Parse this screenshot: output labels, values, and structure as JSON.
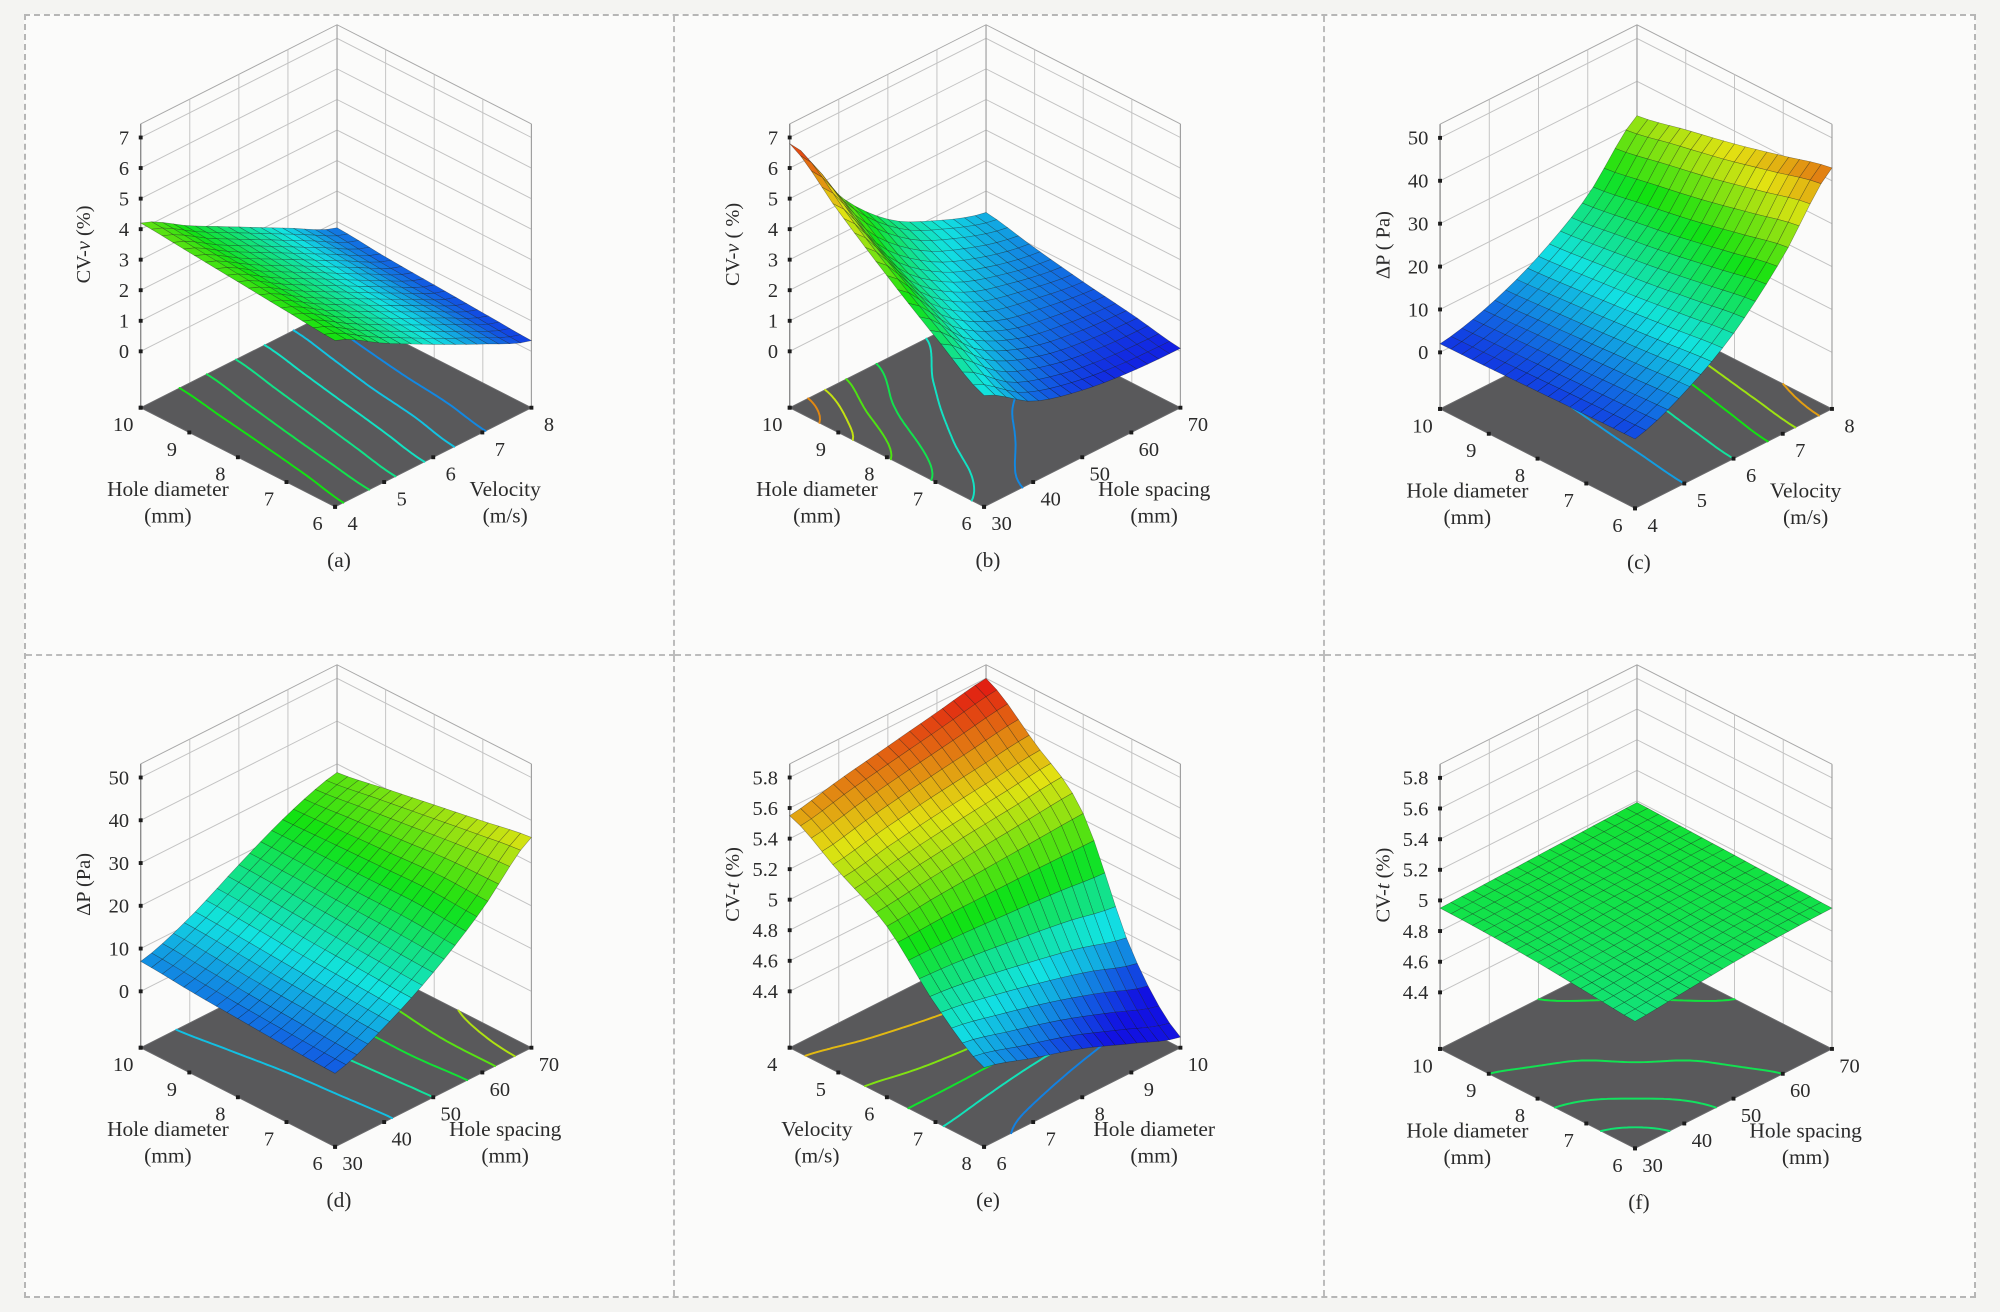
{
  "figure": {
    "background": "#f4f4f2",
    "panel_background": "#fbfbfa",
    "divider_color": "#bcbcbc",
    "floor_color": "#59595b",
    "grid_color": "#c3c3c3",
    "text_color": "#2b2b2b"
  },
  "chart_data": [
    {
      "panel": "a",
      "type": "surface3d",
      "caption": "(a)",
      "z_axis": {
        "label_parts": [
          [
            "CV-",
            false
          ],
          [
            "v",
            true
          ],
          [
            " (%)",
            false
          ]
        ],
        "ticks": [
          "0",
          "1",
          "2",
          "3",
          "4",
          "5",
          "6",
          "7"
        ],
        "range": [
          0,
          7
        ]
      },
      "left_axis": {
        "title_lines": [
          "Hole diameter",
          "(mm)"
        ],
        "tick_labels": [
          "6",
          "7",
          "8",
          "9",
          "10"
        ],
        "values": [
          6,
          7,
          8,
          9,
          10
        ]
      },
      "right_axis": {
        "title_lines": [
          "Velocity",
          "(m/s)"
        ],
        "tick_labels": [
          "4",
          "5",
          "6",
          "7",
          "8"
        ],
        "values": [
          4,
          5,
          6,
          7,
          8
        ]
      },
      "color_range": [
        0,
        7
      ],
      "contour_levels": [
        1,
        1.5,
        2,
        2.5,
        3,
        3.5
      ],
      "z_grid": {
        "rows_axis": "left",
        "cols_axis": "right",
        "values": [
          [
            3.6,
            2.7,
            1.85,
            1.05,
            0.35
          ],
          [
            3.75,
            2.85,
            2.0,
            1.2,
            0.45
          ],
          [
            3.9,
            3.0,
            2.15,
            1.3,
            0.55
          ],
          [
            4.05,
            3.15,
            2.3,
            1.45,
            0.65
          ],
          [
            4.2,
            3.3,
            2.45,
            1.6,
            0.8
          ]
        ]
      }
    },
    {
      "panel": "b",
      "type": "surface3d",
      "caption": "(b)",
      "z_axis": {
        "label_parts": [
          [
            "CV-",
            false
          ],
          [
            "v",
            true
          ],
          [
            " ( %)",
            false
          ]
        ],
        "ticks": [
          "0",
          "1",
          "2",
          "3",
          "4",
          "5",
          "6",
          "7"
        ],
        "range": [
          0,
          7
        ]
      },
      "left_axis": {
        "title_lines": [
          "Hole diameter",
          "(mm)"
        ],
        "tick_labels": [
          "6",
          "7",
          "8",
          "9",
          "10"
        ],
        "values": [
          6,
          7,
          8,
          9,
          10
        ]
      },
      "right_axis": {
        "title_lines": [
          "Hole spacing",
          "(mm)"
        ],
        "tick_labels": [
          "30",
          "40",
          "50",
          "60",
          "70"
        ],
        "values": [
          30,
          40,
          50,
          60,
          70
        ]
      },
      "color_range": [
        0,
        7
      ],
      "contour_levels": [
        1,
        2,
        3,
        4,
        5,
        6
      ],
      "z_grid": {
        "rows_axis": "left",
        "cols_axis": "right",
        "values": [
          [
            1.8,
            0.8,
            0.35,
            0.15,
            0.1
          ],
          [
            2.9,
            1.5,
            0.8,
            0.5,
            0.4
          ],
          [
            4.1,
            2.3,
            1.3,
            0.9,
            0.65
          ],
          [
            5.4,
            3.2,
            1.95,
            1.3,
            0.95
          ],
          [
            6.8,
            4.3,
            2.7,
            1.85,
            1.3
          ]
        ]
      }
    },
    {
      "panel": "c",
      "type": "surface3d",
      "caption": "(c)",
      "z_axis": {
        "label_parts": [
          [
            "ΔP ( Pa)",
            false
          ]
        ],
        "ticks": [
          "0",
          "10",
          "20",
          "30",
          "40",
          "50"
        ],
        "range": [
          0,
          50
        ]
      },
      "left_axis": {
        "title_lines": [
          "Hole diameter",
          "(mm)"
        ],
        "tick_labels": [
          "6",
          "7",
          "8",
          "9",
          "10"
        ],
        "values": [
          6,
          7,
          8,
          9,
          10
        ]
      },
      "right_axis": {
        "title_lines": [
          "Velocity",
          "(m/s)"
        ],
        "tick_labels": [
          "4",
          "5",
          "6",
          "7",
          "8"
        ],
        "values": [
          4,
          5,
          6,
          7,
          8
        ]
      },
      "color_range": [
        0,
        48
      ],
      "contour_levels": [
        8,
        16,
        24,
        32,
        40
      ],
      "z_grid": {
        "rows_axis": "left",
        "cols_axis": "right",
        "values": [
          [
            3,
            8,
            16,
            28,
            43
          ],
          [
            2.8,
            7.2,
            14.5,
            25.5,
            40
          ],
          [
            2.5,
            6.5,
            13,
            23,
            37
          ],
          [
            2.2,
            5.8,
            11.8,
            21,
            34.5
          ],
          [
            2,
            5.2,
            10.8,
            19.2,
            32
          ]
        ]
      }
    },
    {
      "panel": "d",
      "type": "surface3d",
      "caption": "(d)",
      "z_axis": {
        "label_parts": [
          [
            "ΔP (Pa)",
            false
          ]
        ],
        "ticks": [
          "0",
          "10",
          "20",
          "30",
          "40",
          "50"
        ],
        "range": [
          0,
          50
        ]
      },
      "left_axis": {
        "title_lines": [
          "Hole diameter",
          "(mm)"
        ],
        "tick_labels": [
          "6",
          "7",
          "8",
          "9",
          "10"
        ],
        "values": [
          6,
          7,
          8,
          9,
          10
        ]
      },
      "right_axis": {
        "title_lines": [
          "Hole spacing",
          "(mm)"
        ],
        "tick_labels": [
          "30",
          "40",
          "50",
          "60",
          "70"
        ],
        "values": [
          30,
          40,
          50,
          60,
          70
        ]
      },
      "color_range": [
        0,
        48
      ],
      "contour_levels": [
        10,
        16,
        22,
        28,
        33
      ],
      "z_grid": {
        "rows_axis": "left",
        "cols_axis": "right",
        "values": [
          [
            4,
            9,
            16,
            25,
            36
          ],
          [
            4.5,
            9.5,
            16.5,
            25.5,
            34
          ],
          [
            5.2,
            10,
            17,
            25,
            32
          ],
          [
            6,
            10.8,
            17.5,
            24.5,
            30
          ],
          [
            7,
            11.5,
            18,
            24,
            28
          ]
        ]
      }
    },
    {
      "panel": "e",
      "type": "surface3d",
      "caption": "(e)",
      "z_axis": {
        "label_parts": [
          [
            "CV-",
            false
          ],
          [
            "t",
            true
          ],
          [
            " (%)",
            false
          ]
        ],
        "ticks": [
          "4.4",
          "4.6",
          "4.8",
          "5",
          "5.2",
          "5.4",
          "5.6",
          "5.8"
        ],
        "range": [
          4.4,
          5.8
        ]
      },
      "left_axis": {
        "title_lines": [
          "Velocity",
          "(m/s)"
        ],
        "tick_labels": [
          "8",
          "7",
          "6",
          "5",
          "4"
        ],
        "values": [
          8,
          7,
          6,
          5,
          4
        ]
      },
      "right_axis": {
        "title_lines": [
          "Hole diameter",
          "(mm)"
        ],
        "tick_labels": [
          "6",
          "7",
          "8",
          "9",
          "10"
        ],
        "values": [
          6,
          7,
          8,
          9,
          10
        ]
      },
      "color_range": [
        4.3,
        5.8
      ],
      "contour_levels": [
        4.5,
        4.75,
        5,
        5.25,
        5.5
      ],
      "z_grid": {
        "rows_axis": "left",
        "cols_axis": "right",
        "values": [
          [
            4.55,
            4.45,
            4.35,
            4.22,
            4.1
          ],
          [
            4.8,
            4.75,
            4.68,
            4.6,
            4.5
          ],
          [
            5.15,
            5.18,
            5.2,
            5.22,
            5.24
          ],
          [
            5.35,
            5.41,
            5.46,
            5.5,
            5.54
          ],
          [
            5.55,
            5.62,
            5.68,
            5.74,
            5.8
          ]
        ]
      }
    },
    {
      "panel": "f",
      "type": "surface3d",
      "caption": "(f)",
      "z_axis": {
        "label_parts": [
          [
            "CV-",
            false
          ],
          [
            "t",
            true
          ],
          [
            " (%)",
            false
          ]
        ],
        "ticks": [
          "4.4",
          "4.6",
          "4.8",
          "5",
          "5.2",
          "5.4",
          "5.6",
          "5.8"
        ],
        "range": [
          4.4,
          5.8
        ]
      },
      "left_axis": {
        "title_lines": [
          "Hole diameter",
          "(mm)"
        ],
        "tick_labels": [
          "6",
          "7",
          "8",
          "9",
          "10"
        ],
        "values": [
          6,
          7,
          8,
          9,
          10
        ]
      },
      "right_axis": {
        "title_lines": [
          "Hole spacing",
          "(mm)"
        ],
        "tick_labels": [
          "30",
          "40",
          "50",
          "60",
          "70"
        ],
        "values": [
          30,
          40,
          50,
          60,
          70
        ]
      },
      "color_range": [
        4.3,
        5.8
      ],
      "contour_levels": [
        4.88,
        4.91,
        4.94,
        4.97
      ],
      "z_grid": {
        "rows_axis": "left",
        "cols_axis": "right",
        "values": [
          [
            4.86,
            4.89,
            4.92,
            4.94,
            4.95
          ],
          [
            4.89,
            4.91,
            4.93,
            4.95,
            4.96
          ],
          [
            4.92,
            4.93,
            4.95,
            4.96,
            4.97
          ],
          [
            4.94,
            4.95,
            4.96,
            4.97,
            4.98
          ],
          [
            4.95,
            4.96,
            4.97,
            4.98,
            4.99
          ]
        ]
      }
    }
  ]
}
